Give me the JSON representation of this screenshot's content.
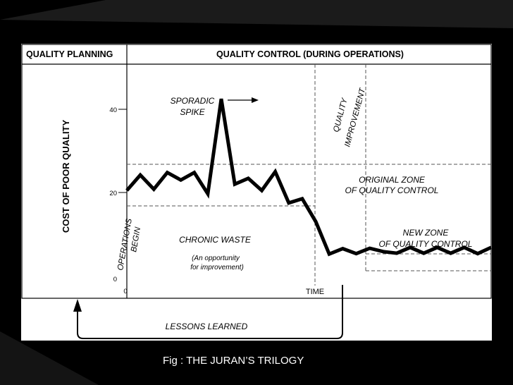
{
  "caption": "Fig : THE JURAN’S TRILOGY",
  "headers": {
    "planning": "QUALITY PLANNING",
    "control": "QUALITY CONTROL (DURING OPERATIONS)"
  },
  "labels": {
    "y_axis": "COST OF POOR QUALITY",
    "sporadic_1": "SPORADIC",
    "sporadic_2": "SPIKE",
    "improve_1": "QUALITY",
    "improve_2": "IMPROVEMENT",
    "orig_zone_1": "ORIGINAL ZONE",
    "orig_zone_2": "OF QUALITY CONTROL",
    "new_zone_1": "NEW ZONE",
    "new_zone_2": "OF QUALITY CONTROL",
    "chronic": "CHRONIC WASTE",
    "opportunity_1": "(An opportunity",
    "opportunity_2": "for improvement)",
    "operations": "OPERATIONS",
    "begin": "BEGIN",
    "time": "TIME",
    "lessons": "LESSONS LEARNED"
  },
  "y_ticks": [
    "40",
    "20",
    "0"
  ],
  "x_tick": "0",
  "colors": {
    "background": "#000000",
    "panel": "#ffffff",
    "line": "#000000",
    "caption": "#ffffff"
  },
  "chart_data": {
    "type": "line",
    "xlabel": "TIME",
    "ylabel": "COST OF POOR QUALITY",
    "ylim": [
      0,
      45
    ],
    "yticks": [
      0,
      20,
      40
    ],
    "series": [
      {
        "values": [
          20.5,
          24.2,
          20.8,
          24.8,
          23,
          24.8,
          19.7,
          42.5,
          22,
          23.4,
          20.5,
          25,
          17.5,
          18.5,
          13,
          5.2,
          6.5,
          5.3,
          6.6,
          5.8,
          5.4,
          6.8,
          5.4,
          6.8,
          5.4,
          6.8,
          5.3,
          6.8
        ]
      }
    ],
    "zones": {
      "original": [
        17.5,
        26.5
      ],
      "new": [
        4.5,
        8
      ]
    }
  }
}
